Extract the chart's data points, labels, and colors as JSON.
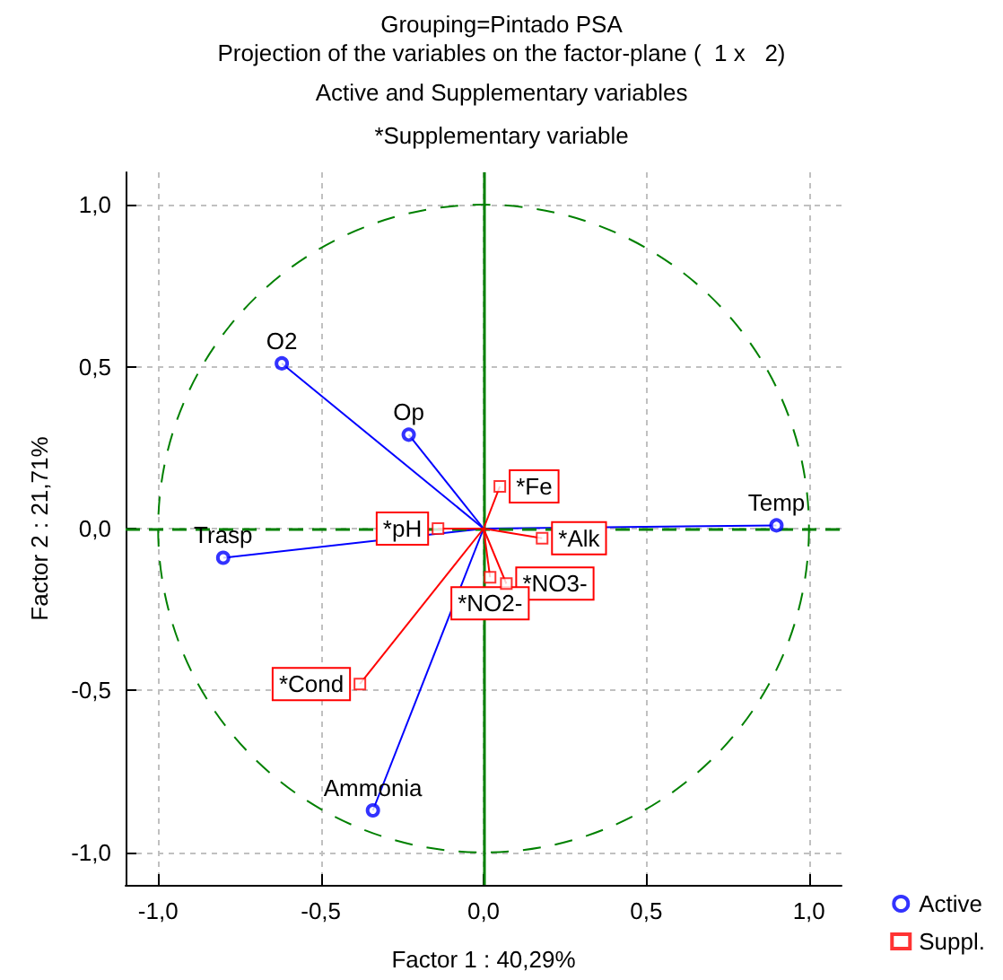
{
  "chart_data": {
    "type": "scatter",
    "title": "Grouping=Pintado PSA",
    "subtitle": "Projection of the variables on the factor-plane (  1 x   2)",
    "xlabel": "Factor 1 : 40,29%",
    "ylabel": "Factor 2 : 21,71%",
    "annotations": [
      "Active and Supplementary variables",
      "*Supplementary variable",
      {
        "text": "O2",
        "x": -0.62,
        "y": 0.51
      },
      {
        "text": "Op",
        "x": -0.23,
        "y": 0.29
      },
      {
        "text": "Trasp",
        "x": -0.8,
        "y": -0.09
      },
      {
        "text": "Temp",
        "x": 0.9,
        "y": 0.01
      },
      {
        "text": "Ammonia",
        "x": -0.34,
        "y": -0.87
      },
      {
        "text": "*pH",
        "x": -0.14,
        "y": 0.0
      },
      {
        "text": "*Fe",
        "x": 0.05,
        "y": 0.13
      },
      {
        "text": "*Alk",
        "x": 0.18,
        "y": -0.03
      },
      {
        "text": "*NO3-",
        "x": 0.07,
        "y": -0.17
      },
      {
        "text": "*NO2-",
        "x": 0.02,
        "y": -0.15
      },
      {
        "text": "*Cond",
        "x": -0.38,
        "y": -0.48
      }
    ],
    "series": [
      {
        "name": "Active",
        "color": "#0000ff",
        "marker": "circle",
        "x": [
          -0.62,
          -0.23,
          -0.8,
          0.9,
          -0.34
        ],
        "values": [
          0.51,
          0.29,
          -0.09,
          0.01,
          -0.87
        ]
      },
      {
        "name": "Suppl.",
        "color": "#ff0000",
        "marker": "square",
        "x": [
          -0.14,
          0.05,
          0.18,
          0.07,
          0.02,
          -0.38
        ],
        "values": [
          0.0,
          0.13,
          -0.03,
          -0.17,
          -0.15,
          -0.48
        ]
      }
    ],
    "xlim": [
      -1.1,
      1.1
    ],
    "ylim": [
      -1.1,
      1.1
    ],
    "xticks": [
      {
        "value": -1,
        "label": "-1,0"
      },
      {
        "value": -0.5,
        "label": "-0,5"
      },
      {
        "value": 0,
        "label": "0,0"
      },
      {
        "value": 0.5,
        "label": "0,5"
      },
      {
        "value": 1,
        "label": "1,0"
      }
    ],
    "yticks": [
      {
        "value": -1,
        "label": "-1,0"
      },
      {
        "value": -0.5,
        "label": "-0,5"
      },
      {
        "value": 0,
        "label": "0,0"
      },
      {
        "value": 0.5,
        "label": "0,5"
      },
      {
        "value": 1,
        "label": "1,0"
      }
    ],
    "ref_lines": [
      {
        "axis": "x",
        "value": 0,
        "color": "#008000",
        "line_style": "solid"
      },
      {
        "axis": "y",
        "value": 0,
        "color": "#008000",
        "line_style": "dashed"
      }
    ],
    "grid": true,
    "legend": "bottom right"
  }
}
